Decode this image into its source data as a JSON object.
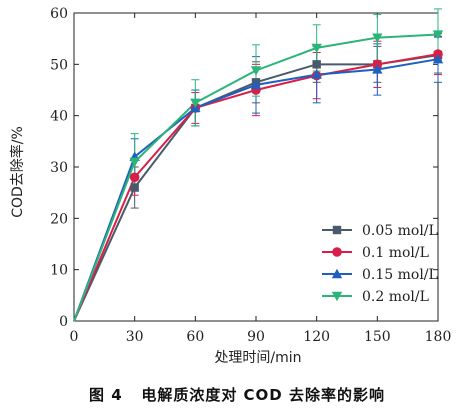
{
  "chart_data": {
    "type": "line",
    "title": "",
    "xlabel": "处理时间/min",
    "ylabel": "COD去除率/%",
    "x": [
      0,
      30,
      60,
      90,
      120,
      150,
      180
    ],
    "xticks": [
      "0",
      "30",
      "60",
      "90",
      "120",
      "150",
      "180"
    ],
    "yticks": [
      "0",
      "10",
      "20",
      "30",
      "40",
      "50",
      "60"
    ],
    "xlim": [
      0,
      180
    ],
    "ylim": [
      0,
      60
    ],
    "grid": false,
    "legend_position": "lower-right",
    "series": [
      {
        "name": "0.05 mol/L",
        "color": "#4a5a6a",
        "marker": "square",
        "values": [
          0,
          26.0,
          41.5,
          46.5,
          50.0,
          50.0,
          51.8
        ],
        "error": [
          0,
          4.0,
          3.5,
          4.0,
          3.5,
          3.5,
          3.5
        ]
      },
      {
        "name": "0.1 mol/L",
        "color": "#d6204a",
        "marker": "circle",
        "values": [
          0,
          28.0,
          41.5,
          45.0,
          47.8,
          50.0,
          52.0
        ],
        "error": [
          0,
          3.5,
          3.0,
          5.0,
          4.5,
          4.5,
          4.0
        ]
      },
      {
        "name": "0.15 mol/L",
        "color": "#1f5fbf",
        "marker": "triangle-up",
        "values": [
          0,
          32.0,
          41.5,
          46.0,
          48.0,
          49.0,
          51.0
        ],
        "error": [
          0,
          3.5,
          3.5,
          5.5,
          5.5,
          5.0,
          4.5
        ]
      },
      {
        "name": "0.2 mol/L",
        "color": "#2bb57a",
        "marker": "triangle-down",
        "values": [
          0,
          31.0,
          42.5,
          48.8,
          53.2,
          55.2,
          55.8
        ],
        "error": [
          0,
          5.5,
          4.5,
          5.0,
          4.5,
          4.5,
          5.0
        ]
      }
    ]
  },
  "caption": "图 4   电解质浓度对 COD 去除率的影响"
}
